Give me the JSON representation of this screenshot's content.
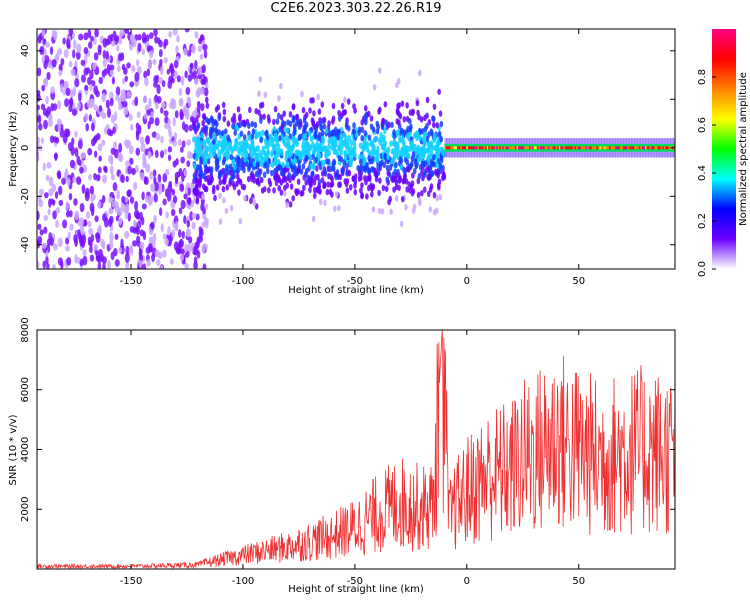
{
  "title": "C2E6.2023.303.22.26.R19",
  "chart_data": [
    {
      "type": "heatmap",
      "xlabel": "Height of straight line (km)",
      "ylabel": "Frequency (Hz)",
      "xlim": [
        -192,
        93
      ],
      "ylim": [
        -50,
        49
      ],
      "xticks": [
        -150,
        -100,
        -50,
        0,
        50
      ],
      "yticks": [
        -40,
        -20,
        0,
        20,
        40
      ],
      "colorbar": {
        "label": "Normalized spectral amplitude",
        "range": [
          0,
          1
        ],
        "ticks": [
          0.0,
          0.2,
          0.4,
          0.6,
          0.8
        ],
        "colormap": [
          "#ffffff",
          "#6a00ff",
          "#0000ff",
          "#00ffff",
          "#00ff00",
          "#ffff00",
          "#ff8000",
          "#ff0000",
          "#ff0080"
        ]
      },
      "regions": [
        {
          "x": [
            -192,
            -116
          ],
          "freq": [
            -50,
            49
          ],
          "amplitude": "0.1-0.3",
          "pattern": "scattered speckle"
        },
        {
          "x": [
            -122,
            -10
          ],
          "freq": [
            -30,
            20
          ],
          "amplitude": "0.2-0.5",
          "pattern": "broadband cloud"
        },
        {
          "x": [
            -10,
            93
          ],
          "freq": [
            -3,
            3
          ],
          "amplitude": "0.6-1.0",
          "pattern": "narrow band centered on 0 Hz"
        }
      ]
    },
    {
      "type": "line",
      "xlabel": "Height of straight line (km)",
      "ylabel": "SNR (10 * v/v)",
      "xlim": [
        -192,
        93
      ],
      "ylim": [
        0,
        8000
      ],
      "xticks": [
        -150,
        -100,
        -50,
        0,
        50
      ],
      "yticks": [
        2000,
        4000,
        6000,
        8000
      ],
      "color": "#f03030",
      "series": [
        {
          "x": [
            -192,
            -150,
            -120,
            -115,
            -100,
            -80,
            -60,
            -50,
            -40,
            -30,
            -20,
            -15,
            -11,
            -8,
            -5,
            0,
            10,
            20,
            25,
            35,
            40,
            50,
            60,
            70,
            80,
            93
          ],
          "y": [
            100,
            100,
            150,
            250,
            500,
            800,
            1200,
            1500,
            2000,
            2400,
            2200,
            2300,
            8000,
            1800,
            2300,
            2800,
            3400,
            3600,
            4000,
            4400,
            4700,
            4300,
            4000,
            4200,
            4300,
            4100
          ]
        }
      ]
    }
  ]
}
